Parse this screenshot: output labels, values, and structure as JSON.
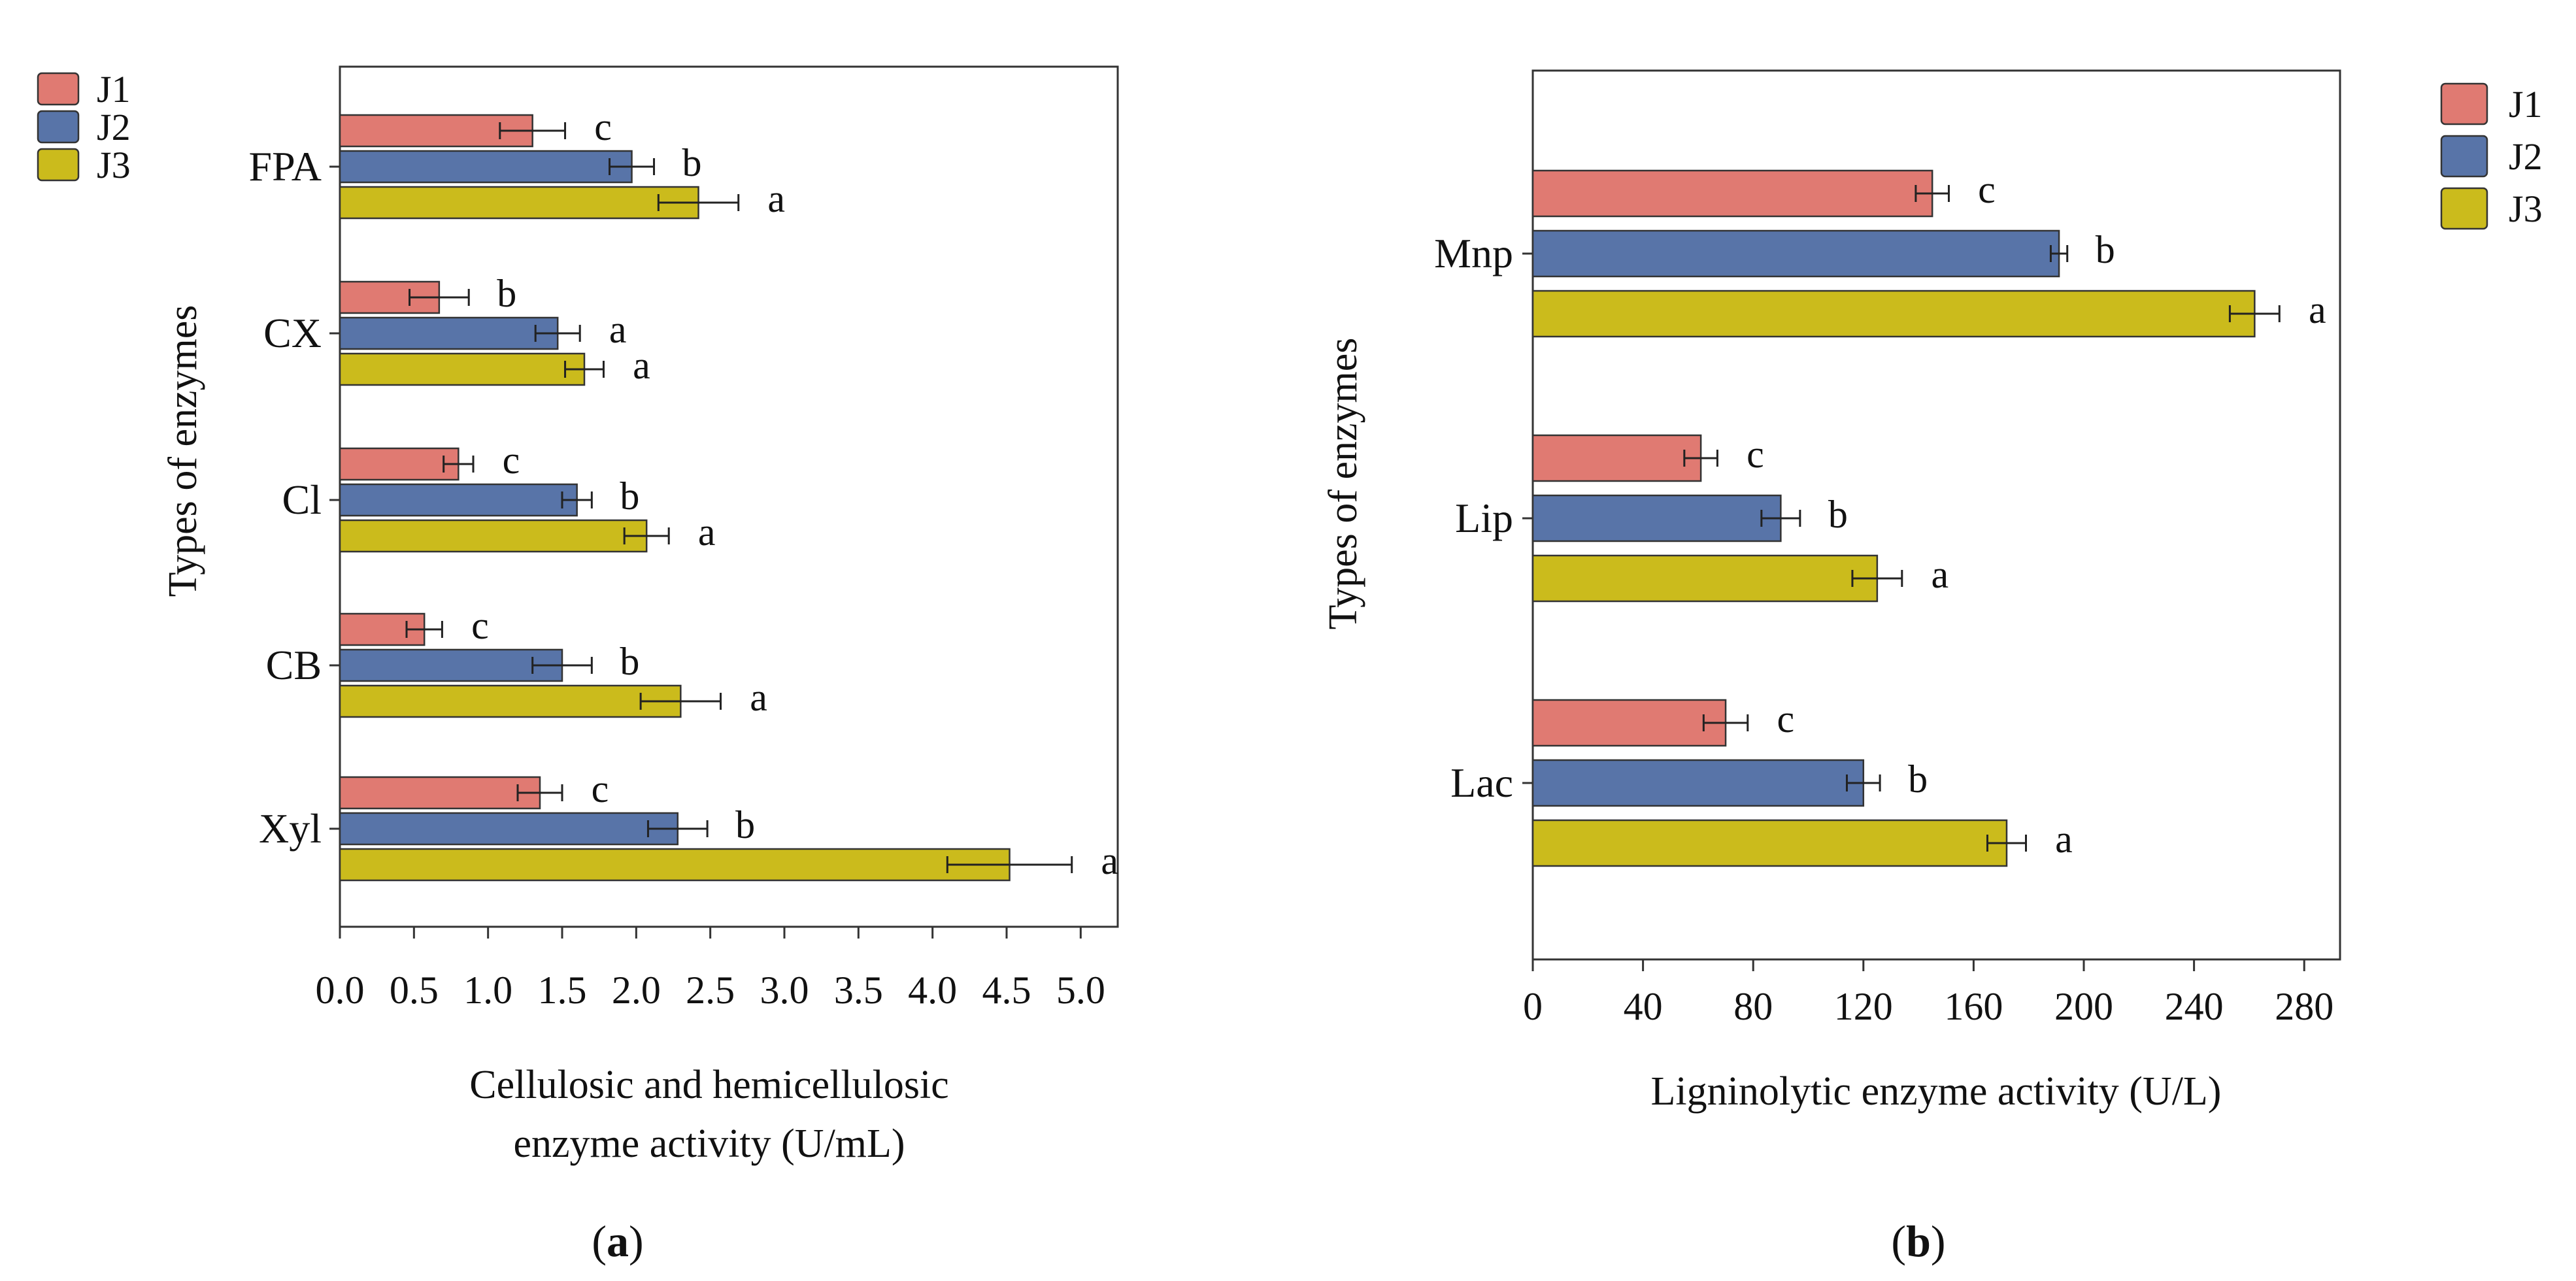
{
  "chart_data": [
    {
      "type": "bar",
      "orientation": "horizontal",
      "panel_label": "a",
      "categories": [
        "FPA",
        "CX",
        "Cl",
        "CB",
        "Xyl"
      ],
      "series": [
        {
          "name": "J1",
          "color": "#e07a72",
          "values": [
            1.3,
            0.67,
            0.8,
            0.57,
            1.35
          ],
          "errors": [
            0.22,
            0.2,
            0.1,
            0.12,
            0.15
          ]
        },
        {
          "name": "J2",
          "color": "#5874a8",
          "values": [
            1.97,
            1.47,
            1.6,
            1.5,
            2.28
          ],
          "errors": [
            0.15,
            0.15,
            0.1,
            0.2,
            0.2
          ]
        },
        {
          "name": "J3",
          "color": "#cbbb1c",
          "values": [
            2.42,
            1.65,
            2.07,
            2.3,
            4.52
          ],
          "errors": [
            0.27,
            0.13,
            0.15,
            0.27,
            0.42
          ]
        }
      ],
      "significance": [
        [
          "c",
          "b",
          "a"
        ],
        [
          "b",
          "a",
          "a"
        ],
        [
          "c",
          "b",
          "a"
        ],
        [
          "c",
          "b",
          "a"
        ],
        [
          "c",
          "b",
          "a"
        ]
      ],
      "xlim": [
        0,
        5.25
      ],
      "xticks": [
        0,
        0.5,
        1,
        1.5,
        2,
        2.5,
        3,
        3.5,
        4,
        4.5,
        5
      ],
      "xtick_labels": [
        "0.0",
        "0.5",
        "1.0",
        "1.5",
        "2.0",
        "2.5",
        "3.0",
        "3.5",
        "4.0",
        "4.5",
        "5.0"
      ],
      "xlabel": [
        "Cellulosic and hemicellulosic",
        "enzyme activity (U/mL)"
      ],
      "ylabel": "Types of enzymes",
      "legend_position": "top-left"
    },
    {
      "type": "bar",
      "orientation": "horizontal",
      "panel_label": "b",
      "categories": [
        "Mnp",
        "Lip",
        "Lac"
      ],
      "series": [
        {
          "name": "J1",
          "color": "#e07a72",
          "values": [
            145,
            61,
            70
          ],
          "errors": [
            6,
            6,
            8
          ]
        },
        {
          "name": "J2",
          "color": "#5874a8",
          "values": [
            191,
            90,
            120
          ],
          "errors": [
            3,
            7,
            6
          ]
        },
        {
          "name": "J3",
          "color": "#cbbb1c",
          "values": [
            262,
            125,
            172
          ],
          "errors": [
            9,
            9,
            7
          ]
        }
      ],
      "significance": [
        [
          "c",
          "b",
          "a"
        ],
        [
          "c",
          "b",
          "a"
        ],
        [
          "c",
          "b",
          "a"
        ]
      ],
      "xlim": [
        0,
        293
      ],
      "xticks": [
        0,
        40,
        80,
        120,
        160,
        200,
        240,
        280
      ],
      "xtick_labels": [
        "0",
        "40",
        "80",
        "120",
        "160",
        "200",
        "240",
        "280"
      ],
      "xlabel": [
        "Ligninolytic enzyme activity (U/L)"
      ],
      "ylabel": "Types of enzymes",
      "legend_position": "top-right"
    }
  ]
}
